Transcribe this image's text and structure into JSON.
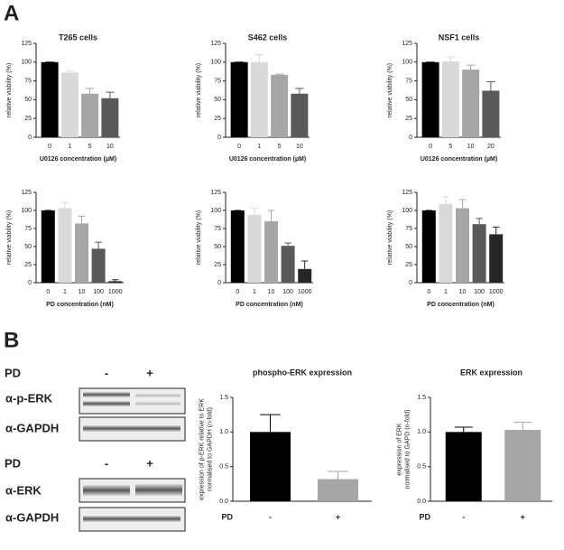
{
  "labels": {
    "panel_a": "A",
    "panel_b": "B",
    "pd_1": "PD",
    "minus_1": "-",
    "plus_1": "+",
    "pd_2": "PD",
    "minus_2": "-",
    "plus_2": "+",
    "blot_1a": "α-p-ERK",
    "blot_1b": "α-GAPDH",
    "blot_2a": "α-ERK",
    "blot_2b": "α-GAPDH"
  },
  "chart_data": [
    {
      "type": "bar",
      "title": "T265 cells",
      "categories": [
        "0",
        "1",
        "5",
        "10"
      ],
      "values": [
        100,
        86,
        58,
        52
      ],
      "errors": [
        0,
        2,
        7,
        8
      ],
      "colors": [
        "#000000",
        "#d9d9d9",
        "#a6a6a6",
        "#595959"
      ],
      "xlabel": "U0126 concentration (µM)",
      "ylabel": "relative viability (%)",
      "ylim": [
        0,
        125
      ],
      "yticks": [
        0,
        25,
        50,
        75,
        100,
        125
      ]
    },
    {
      "type": "bar",
      "title": "S462 cells",
      "categories": [
        "0",
        "1",
        "5",
        "10"
      ],
      "values": [
        100,
        100,
        83,
        58
      ],
      "errors": [
        0,
        10,
        1,
        7
      ],
      "colors": [
        "#000000",
        "#d9d9d9",
        "#a6a6a6",
        "#595959"
      ],
      "xlabel": "U0126 concentration (µM)",
      "ylabel": "relative viability (%)",
      "ylim": [
        0,
        125
      ],
      "yticks": [
        0,
        25,
        50,
        75,
        100,
        125
      ]
    },
    {
      "type": "bar",
      "title": "NSF1 cells",
      "categories": [
        "0",
        "5",
        "10",
        "20"
      ],
      "values": [
        100,
        101,
        90,
        62
      ],
      "errors": [
        0,
        6,
        6,
        12
      ],
      "colors": [
        "#000000",
        "#d9d9d9",
        "#a6a6a6",
        "#595959"
      ],
      "xlabel": "U0126 concentration (µM)",
      "ylabel": "relative viability (%)",
      "ylim": [
        0,
        125
      ],
      "yticks": [
        0,
        25,
        50,
        75,
        100,
        125
      ]
    },
    {
      "type": "bar",
      "categories": [
        "0",
        "1",
        "10",
        "100",
        "1000"
      ],
      "values": [
        100,
        103,
        82,
        47,
        2
      ],
      "errors": [
        0,
        8,
        10,
        9,
        2
      ],
      "colors": [
        "#000000",
        "#d9d9d9",
        "#a6a6a6",
        "#595959",
        "#262626"
      ],
      "xlabel": "PD concentration (nM)",
      "ylabel": "relative viability (%)",
      "ylim": [
        0,
        125
      ],
      "yticks": [
        0,
        25,
        50,
        75,
        100,
        125
      ]
    },
    {
      "type": "bar",
      "categories": [
        "0",
        "1",
        "10",
        "100",
        "1000"
      ],
      "values": [
        100,
        94,
        85,
        51,
        19
      ],
      "errors": [
        0,
        9,
        15,
        4,
        11
      ],
      "colors": [
        "#000000",
        "#d9d9d9",
        "#a6a6a6",
        "#595959",
        "#262626"
      ],
      "xlabel": "PD concentration (nM)",
      "ylabel": "relative viability (%)",
      "ylim": [
        0,
        125
      ],
      "yticks": [
        0,
        25,
        50,
        75,
        100,
        125
      ]
    },
    {
      "type": "bar",
      "categories": [
        "0",
        "1",
        "10",
        "100",
        "1000"
      ],
      "values": [
        100,
        109,
        103,
        81,
        67
      ],
      "errors": [
        0,
        10,
        12,
        8,
        10
      ],
      "colors": [
        "#000000",
        "#d9d9d9",
        "#a6a6a6",
        "#595959",
        "#262626"
      ],
      "xlabel": "PD concentration (nM)",
      "ylabel": "relative viability (%)",
      "ylim": [
        0,
        125
      ],
      "yticks": [
        0,
        25,
        50,
        75,
        100,
        125
      ]
    },
    {
      "type": "bar",
      "title": "phospho-ERK expression",
      "categories": [
        "-",
        "+"
      ],
      "values": [
        1.0,
        0.32
      ],
      "errors": [
        0.25,
        0.11
      ],
      "colors": [
        "#000000",
        "#a6a6a6"
      ],
      "xlabel": "PD",
      "ylabel": [
        "expression of p-ERK relative to ERK",
        "normalised to GAPDH (n-fold)"
      ],
      "ylim": [
        0,
        1.5
      ],
      "yticks": [
        {
          "value": 0,
          "label": "0.0"
        },
        0.5,
        {
          "value": 1,
          "label": "1.0"
        },
        1.5
      ]
    },
    {
      "type": "bar",
      "title": "ERK expression",
      "categories": [
        "-",
        "+"
      ],
      "values": [
        1.0,
        1.03
      ],
      "errors": [
        0.07,
        0.11
      ],
      "colors": [
        "#000000",
        "#a6a6a6"
      ],
      "xlabel": "PD",
      "ylabel": [
        "expression of ERK",
        "normalised to GAPD (n-fold)"
      ],
      "ylim": [
        0,
        1.5
      ],
      "yticks": [
        {
          "value": 0,
          "label": "0.0"
        },
        0.5,
        {
          "value": 1,
          "label": "1.0"
        },
        1.5
      ]
    }
  ]
}
